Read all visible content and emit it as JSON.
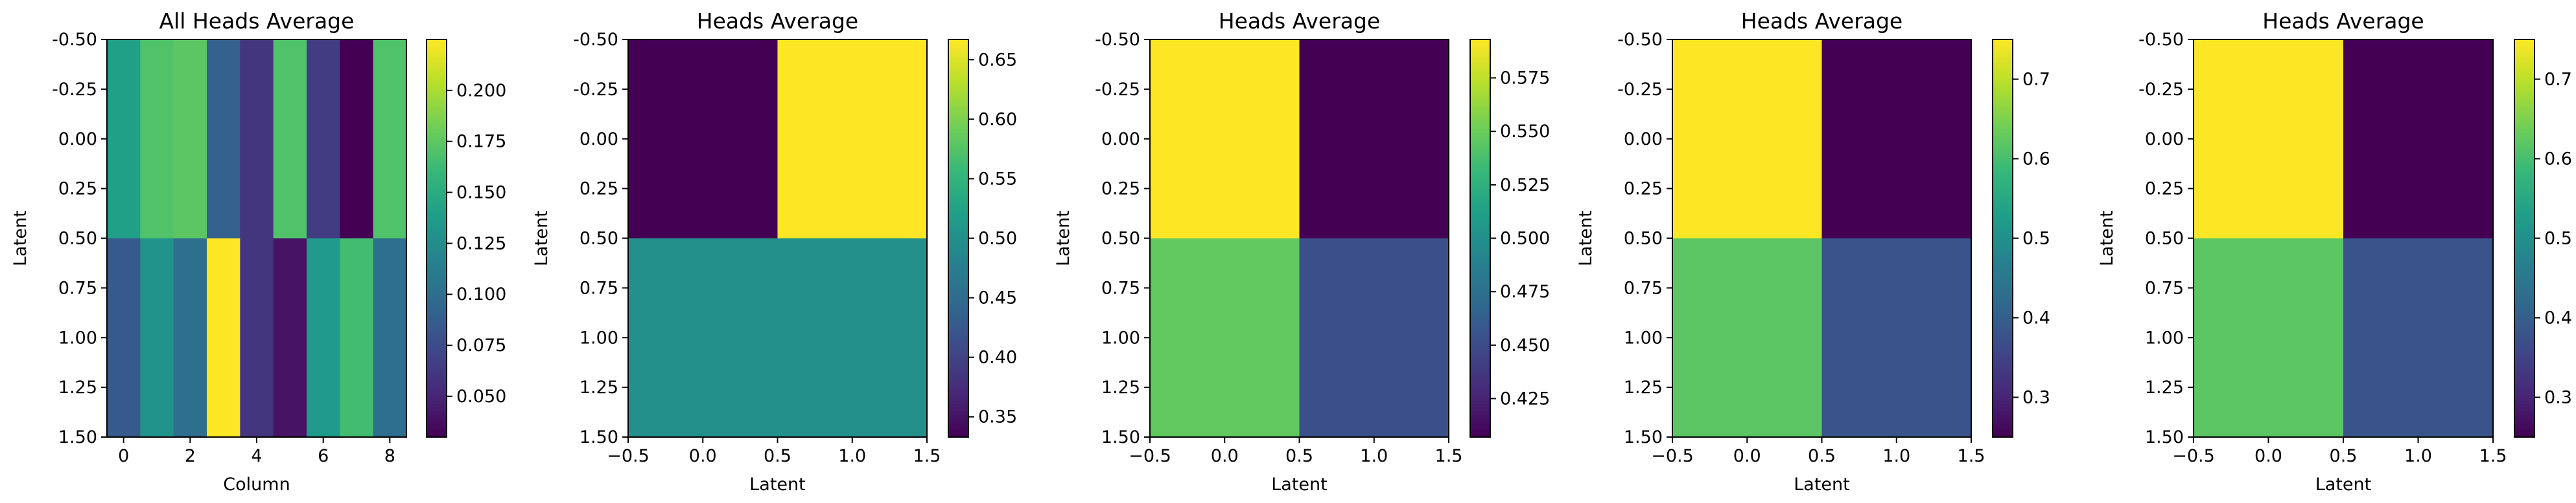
{
  "chart_data": [
    {
      "type": "heatmap",
      "title": "All Heads Average",
      "xlabel": "Column",
      "ylabel": "Latent",
      "xlim": [
        -0.5,
        8.5
      ],
      "ylim": [
        1.5,
        -0.5
      ],
      "xticks": [
        "0",
        "2",
        "4",
        "6",
        "8"
      ],
      "yticks": [
        "-0.50",
        "-0.25",
        "0.00",
        "0.25",
        "0.50",
        "0.75",
        "1.00",
        "1.25",
        "1.50"
      ],
      "values": [
        [
          0.14,
          0.17,
          0.175,
          0.09,
          0.06,
          0.17,
          0.065,
          0.03,
          0.17
        ],
        [
          0.085,
          0.13,
          0.1,
          0.225,
          0.06,
          0.04,
          0.135,
          0.165,
          0.1
        ]
      ],
      "colorbar": {
        "min": 0.03,
        "max": 0.225,
        "ticks": [
          "0.050",
          "0.075",
          "0.100",
          "0.125",
          "0.150",
          "0.175",
          "0.200"
        ]
      }
    },
    {
      "type": "heatmap",
      "title": "Heads Average",
      "xlabel": "Latent",
      "ylabel": "Latent",
      "xlim": [
        -0.5,
        1.5
      ],
      "ylim": [
        1.5,
        -0.5
      ],
      "xticks": [
        "−0.5",
        "0.0",
        "0.5",
        "1.0",
        "1.5"
      ],
      "yticks": [
        "-0.50",
        "-0.25",
        "0.00",
        "0.25",
        "0.50",
        "0.75",
        "1.00",
        "1.25",
        "1.50"
      ],
      "values": [
        [
          0.333,
          0.667
        ],
        [
          0.5,
          0.5
        ]
      ],
      "colorbar": {
        "min": 0.333,
        "max": 0.667,
        "ticks": [
          "0.35",
          "0.40",
          "0.45",
          "0.50",
          "0.55",
          "0.60",
          "0.65"
        ]
      }
    },
    {
      "type": "heatmap",
      "title": "Heads Average",
      "xlabel": "Latent",
      "ylabel": "Latent",
      "xlim": [
        -0.5,
        1.5
      ],
      "ylim": [
        1.5,
        -0.5
      ],
      "xticks": [
        "−0.5",
        "0.0",
        "0.5",
        "1.0",
        "1.5"
      ],
      "yticks": [
        "-0.50",
        "-0.25",
        "0.00",
        "0.25",
        "0.50",
        "0.75",
        "1.00",
        "1.25",
        "1.50"
      ],
      "values": [
        [
          0.593,
          0.407
        ],
        [
          0.547,
          0.453
        ]
      ],
      "colorbar": {
        "min": 0.407,
        "max": 0.593,
        "ticks": [
          "0.425",
          "0.450",
          "0.475",
          "0.500",
          "0.525",
          "0.550",
          "0.575"
        ]
      }
    },
    {
      "type": "heatmap",
      "title": "Heads Average",
      "xlabel": "Latent",
      "ylabel": "Latent",
      "xlim": [
        -0.5,
        1.5
      ],
      "ylim": [
        1.5,
        -0.5
      ],
      "xticks": [
        "−0.5",
        "0.0",
        "0.5",
        "1.0",
        "1.5"
      ],
      "yticks": [
        "-0.50",
        "-0.25",
        "0.00",
        "0.25",
        "0.50",
        "0.75",
        "1.00",
        "1.25",
        "1.50"
      ],
      "values": [
        [
          0.75,
          0.25
        ],
        [
          0.62,
          0.38
        ]
      ],
      "colorbar": {
        "min": 0.25,
        "max": 0.75,
        "ticks": [
          "0.3",
          "0.4",
          "0.5",
          "0.6",
          "0.7"
        ]
      }
    },
    {
      "type": "heatmap",
      "title": "Heads Average",
      "xlabel": "",
      "ylabel": "Latent",
      "xlim": [
        -0.5,
        1.5
      ],
      "ylim": [
        1.5,
        -0.5
      ],
      "xticks": [
        "−0.5",
        "0.0",
        "0.5",
        "1.0",
        "1.5"
      ],
      "yticks": [
        "-0.50",
        "-0.25",
        "0.00",
        "0.25",
        "0.50",
        "0.75",
        "1.00",
        "1.25",
        "1.50"
      ],
      "values": [
        [
          0.75,
          0.25
        ],
        [
          0.62,
          0.38
        ]
      ],
      "colorbar": {
        "min": 0.25,
        "max": 0.75,
        "ticks": [
          "0.3",
          "0.4",
          "0.5",
          "0.6",
          "0.7"
        ]
      }
    }
  ],
  "panel5_xlabel": "Latent",
  "colormap": [
    "#440154",
    "#482878",
    "#3e4989",
    "#31688e",
    "#26828e",
    "#1f9e89",
    "#35b779",
    "#6ece58",
    "#b5de2b",
    "#fde725"
  ]
}
